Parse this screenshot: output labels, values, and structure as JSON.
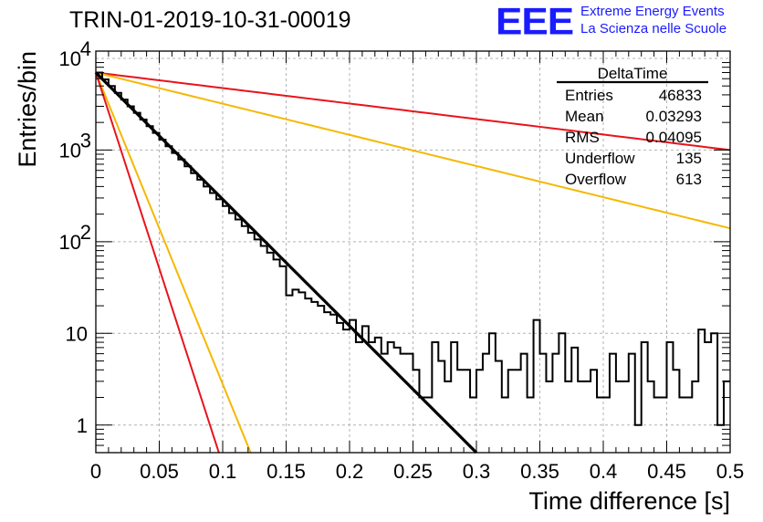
{
  "header": {
    "title": "TRIN-01-2019-10-31-00019",
    "logo": "EEE",
    "logo_line1": "Extreme Energy Events",
    "logo_line2": "La Scienza nelle Scuole"
  },
  "colors": {
    "histogram": "#000000",
    "fit": "#000000",
    "red": "#e8141c",
    "orange": "#f5b800",
    "grid": "#b3b3b3",
    "logo": "#1b1bff"
  },
  "stats": {
    "title": "DeltaTime",
    "rows": [
      {
        "label": "Entries",
        "value": "46833"
      },
      {
        "label": "Mean",
        "value": "0.03293"
      },
      {
        "label": "RMS",
        "value": "0.04095"
      },
      {
        "label": "Underflow",
        "value": "135"
      },
      {
        "label": "Overflow",
        "value": "613"
      }
    ]
  },
  "chart_data": {
    "type": "line",
    "title": "TRIN-01-2019-10-31-00019",
    "xlabel": "Time difference [s]",
    "ylabel": "Entries/bin",
    "xlim": [
      0,
      0.5
    ],
    "ylim": [
      0.5,
      12000
    ],
    "yscale": "log",
    "grid": true,
    "legend": "top-right stats box",
    "x_ticks": [
      "0",
      "0.05",
      "0.1",
      "0.15",
      "0.2",
      "0.25",
      "0.3",
      "0.35",
      "0.4",
      "0.45",
      "0.5"
    ],
    "y_ticks": [
      {
        "value": 1,
        "label": "1"
      },
      {
        "value": 10,
        "label": "10"
      },
      {
        "value": 100,
        "label": "10",
        "exp": "2"
      },
      {
        "value": 1000,
        "label": "10",
        "exp": "3"
      },
      {
        "value": 10000,
        "label": "10",
        "exp": "4"
      }
    ],
    "histogram": {
      "bin_width": 0.005,
      "counts": [
        7000,
        5900,
        5000,
        4200,
        3550,
        3000,
        2550,
        2150,
        1820,
        1540,
        1300,
        1100,
        930,
        790,
        665,
        560,
        475,
        400,
        340,
        290,
        245,
        205,
        175,
        148,
        125,
        106,
        90,
        76,
        64,
        54,
        26,
        30,
        28,
        24,
        22,
        20,
        17,
        16,
        13,
        11,
        14,
        8,
        12,
        8,
        9,
        6,
        8,
        7,
        6,
        6,
        4,
        2,
        2,
        8,
        5,
        3,
        8,
        4,
        4,
        2,
        4,
        6,
        10,
        5,
        2,
        4,
        4,
        6,
        2,
        14,
        6,
        3,
        6,
        10,
        3,
        7,
        3,
        3,
        4,
        2,
        2,
        6,
        3,
        3,
        6,
        1,
        8,
        3,
        2,
        2,
        8,
        4,
        2,
        2,
        3,
        11,
        8,
        10,
        1,
        3
      ],
      "fit": {
        "type": "exponential",
        "x": [
          0,
          0.3
        ],
        "y": [
          7000,
          0.5
        ]
      }
    },
    "series": [
      {
        "type": "exponential",
        "color": "red",
        "x": [
          0,
          0.5
        ],
        "y": [
          7000,
          1000
        ]
      },
      {
        "type": "exponential",
        "color": "orange",
        "x": [
          0,
          0.5
        ],
        "y": [
          7000,
          140
        ]
      },
      {
        "type": "exponential",
        "color": "orange",
        "x": [
          0,
          0.122
        ],
        "y": [
          7000,
          0.5
        ]
      },
      {
        "type": "exponential",
        "color": "red",
        "x": [
          0,
          0.097
        ],
        "y": [
          7000,
          0.5
        ]
      }
    ]
  }
}
